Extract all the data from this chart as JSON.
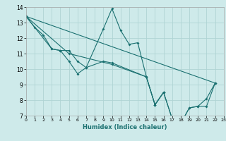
{
  "xlabel": "Humidex (Indice chaleur)",
  "xlim": [
    0,
    23
  ],
  "ylim": [
    7,
    14
  ],
  "yticks": [
    7,
    8,
    9,
    10,
    11,
    12,
    13,
    14
  ],
  "xticks": [
    0,
    1,
    2,
    3,
    4,
    5,
    6,
    7,
    8,
    9,
    10,
    11,
    12,
    13,
    14,
    15,
    16,
    17,
    18,
    19,
    20,
    21,
    22,
    23
  ],
  "bg_color": "#ceeaea",
  "grid_color": "#afd4d4",
  "line_color": "#1a7070",
  "line1_x": [
    0,
    1,
    2,
    3,
    4,
    5,
    6,
    7,
    9,
    10,
    11,
    12,
    13,
    14,
    15,
    16,
    17,
    18,
    19,
    20,
    21,
    22
  ],
  "line1_y": [
    13.4,
    12.7,
    12.2,
    11.3,
    11.2,
    10.5,
    9.7,
    10.1,
    12.6,
    13.9,
    12.5,
    11.6,
    11.7,
    9.5,
    7.7,
    8.5,
    6.8,
    6.5,
    7.5,
    7.6,
    8.1,
    9.1
  ],
  "line2_x": [
    0,
    3,
    4,
    5,
    6,
    7,
    9,
    10,
    14,
    15,
    16
  ],
  "line2_y": [
    13.4,
    11.3,
    11.2,
    11.2,
    10.5,
    10.1,
    10.5,
    10.4,
    9.5,
    7.7,
    8.5
  ],
  "line3_x": [
    0,
    5,
    10,
    14,
    15,
    16,
    17,
    18,
    19,
    20,
    21,
    22
  ],
  "line3_y": [
    13.4,
    11.0,
    10.3,
    9.5,
    7.7,
    8.5,
    6.8,
    6.5,
    7.5,
    7.6,
    7.6,
    9.1
  ],
  "line4_x": [
    0,
    22
  ],
  "line4_y": [
    13.4,
    9.1
  ]
}
